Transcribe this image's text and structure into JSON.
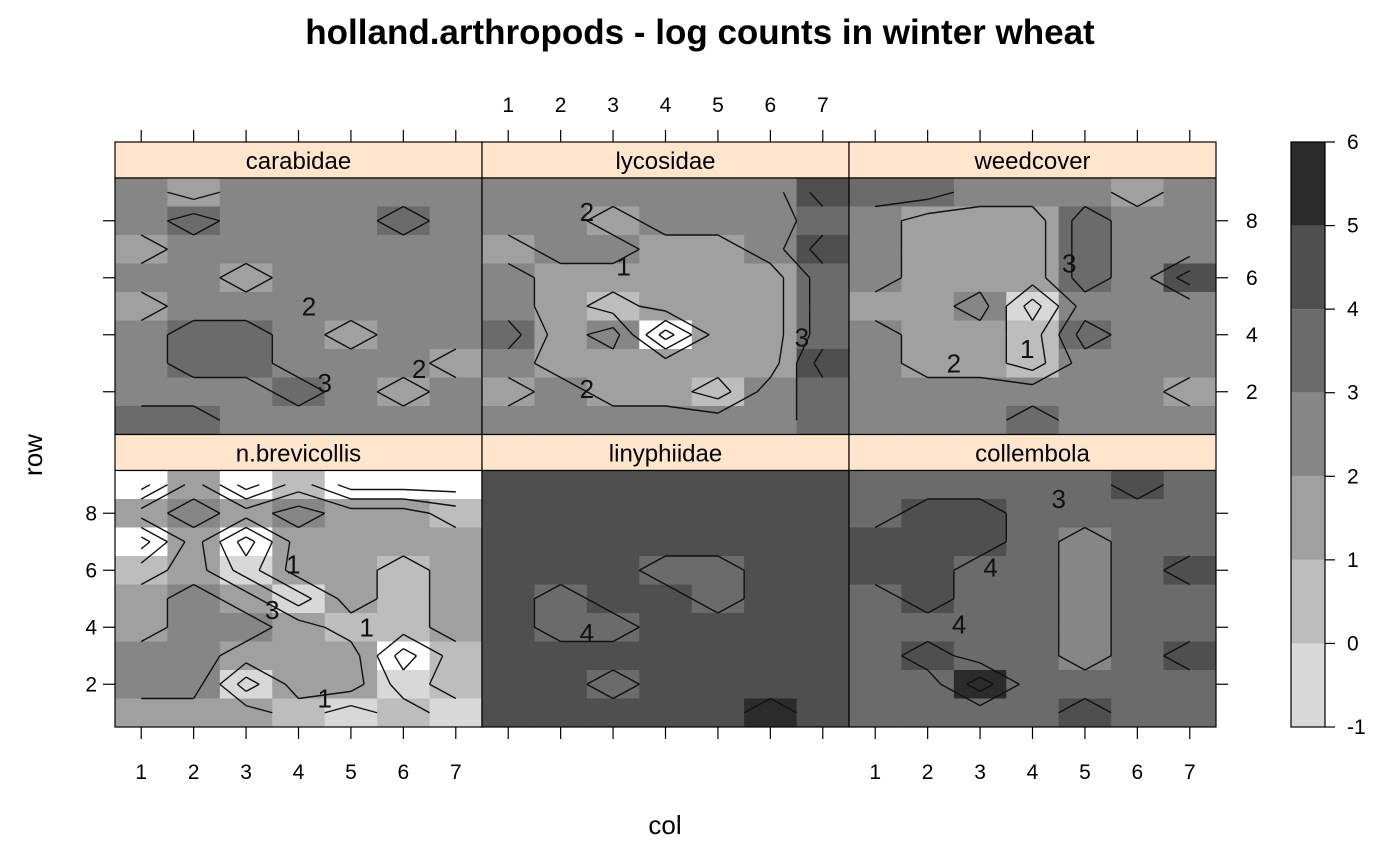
{
  "chart_data": {
    "type": "heatmap",
    "title": "holland.arthropods - log counts in winter wheat",
    "xlabel": "col",
    "ylabel": "row",
    "x_ticks": [
      "1",
      "2",
      "3",
      "4",
      "5",
      "6",
      "7"
    ],
    "y_ticks": [
      "2",
      "4",
      "6",
      "8"
    ],
    "xlim": [
      0.5,
      7.5
    ],
    "ylim": [
      0.5,
      9.5
    ],
    "colorbar": {
      "breaks": [
        -1,
        0,
        1,
        2,
        3,
        4,
        5,
        6
      ],
      "tick_labels": [
        "-1",
        "0",
        "1",
        "2",
        "3",
        "4",
        "5",
        "6"
      ],
      "colors": [
        "#d8d8d8",
        "#bdbdbd",
        "#a0a0a0",
        "#868686",
        "#6b6b6b",
        "#4f4f4f",
        "#2b2b2b"
      ]
    },
    "strip_color": "#ffe5cc",
    "panels": [
      {
        "name": "carabidae",
        "grid": [
          [
            2.5,
            1.5,
            2.5,
            2.5,
            2.5,
            2.5,
            2.5
          ],
          [
            2.5,
            3.5,
            2.5,
            2.5,
            2.5,
            3.5,
            2.5
          ],
          [
            1.5,
            2.5,
            2.5,
            2.5,
            2.5,
            2.5,
            2.5
          ],
          [
            2.5,
            2.5,
            1.5,
            2.5,
            2.5,
            2.5,
            2.5
          ],
          [
            1.5,
            2.5,
            2.5,
            2.5,
            2.5,
            2.5,
            2.5
          ],
          [
            2.5,
            3.5,
            3.5,
            2.5,
            1.5,
            2.5,
            2.5
          ],
          [
            2.5,
            3.5,
            3.5,
            2.5,
            2.5,
            2.5,
            1.5
          ],
          [
            2.5,
            2.5,
            2.5,
            3.5,
            2.5,
            1.5,
            2.5
          ],
          [
            3.5,
            3.5,
            2.5,
            2.5,
            2.5,
            2.5,
            2.5
          ]
        ],
        "contour_labels": [
          {
            "text": "2",
            "x": 4.2,
            "y": 5.0
          },
          {
            "text": "3",
            "x": 4.5,
            "y": 2.3
          },
          {
            "text": "2",
            "x": 6.3,
            "y": 2.8
          }
        ]
      },
      {
        "name": "lycosidae",
        "grid": [
          [
            2.5,
            2.5,
            2.5,
            2.5,
            2.5,
            2.5,
            4.5
          ],
          [
            2.5,
            2.5,
            1.5,
            2.5,
            2.5,
            2.5,
            3.5
          ],
          [
            1.5,
            2.5,
            2.5,
            1.5,
            1.5,
            2.5,
            4.5
          ],
          [
            2.5,
            1.5,
            1.5,
            1.5,
            1.5,
            1.5,
            3.5
          ],
          [
            2.5,
            1.5,
            0.5,
            1.5,
            1.5,
            1.5,
            3.5
          ],
          [
            3.5,
            1.5,
            2.5,
            -1.5,
            1.5,
            1.5,
            3.5
          ],
          [
            2.5,
            1.5,
            1.5,
            1.5,
            1.5,
            1.5,
            4.5
          ],
          [
            1.5,
            2.5,
            1.5,
            1.5,
            0.5,
            2.5,
            3.5
          ],
          [
            2.5,
            2.5,
            2.5,
            2.5,
            2.5,
            2.5,
            3.5
          ]
        ],
        "contour_labels": [
          {
            "text": "2",
            "x": 2.5,
            "y": 8.3
          },
          {
            "text": "1",
            "x": 3.2,
            "y": 6.4
          },
          {
            "text": "3",
            "x": 6.6,
            "y": 3.9
          },
          {
            "text": "2",
            "x": 2.5,
            "y": 2.1
          }
        ]
      },
      {
        "name": "weedcover",
        "grid": [
          [
            3.5,
            3.5,
            2.5,
            2.5,
            2.5,
            1.5,
            2.5
          ],
          [
            2.5,
            1.5,
            1.5,
            1.5,
            3.5,
            2.5,
            2.5
          ],
          [
            2.5,
            1.5,
            1.5,
            1.5,
            3.5,
            2.5,
            2.5
          ],
          [
            2.5,
            1.5,
            1.5,
            1.5,
            3.5,
            2.5,
            4.5
          ],
          [
            1.5,
            1.5,
            2.5,
            -0.5,
            2.5,
            2.5,
            2.5
          ],
          [
            2.5,
            1.5,
            1.5,
            0.5,
            3.5,
            2.5,
            2.5
          ],
          [
            2.5,
            1.5,
            1.5,
            0.5,
            2.5,
            2.5,
            2.5
          ],
          [
            2.5,
            2.5,
            2.5,
            2.5,
            2.5,
            2.5,
            1.5
          ],
          [
            2.5,
            2.5,
            2.5,
            3.5,
            2.5,
            2.5,
            2.5
          ]
        ],
        "contour_labels": [
          {
            "text": "3",
            "x": 4.7,
            "y": 6.5
          },
          {
            "text": "2",
            "x": 2.5,
            "y": 3.0
          },
          {
            "text": "1",
            "x": 3.9,
            "y": 3.5
          }
        ]
      },
      {
        "name": "n.brevicollis",
        "grid": [
          [
            -1.5,
            1.5,
            -1.5,
            0.5,
            -1.5,
            -1.5,
            -1.5
          ],
          [
            1.5,
            2.5,
            1.5,
            2.5,
            1.5,
            1.5,
            0.5
          ],
          [
            -1.5,
            1.5,
            -1.5,
            1.5,
            1.5,
            1.5,
            1.5
          ],
          [
            0.5,
            1.5,
            -0.5,
            1.5,
            1.5,
            0.5,
            1.5
          ],
          [
            1.5,
            2.5,
            1.5,
            -0.5,
            1.5,
            0.5,
            1.5
          ],
          [
            1.5,
            2.5,
            2.5,
            1.5,
            0.5,
            0.5,
            1.5
          ],
          [
            2.5,
            2.5,
            1.5,
            1.5,
            1.5,
            -1.5,
            0.5
          ],
          [
            2.5,
            2.5,
            -0.5,
            1.5,
            1.5,
            -0.5,
            0.5
          ],
          [
            1.5,
            1.5,
            1.5,
            0.5,
            -0.5,
            0.5,
            -0.5
          ]
        ],
        "contour_labels": [
          {
            "text": "1",
            "x": 3.9,
            "y": 6.2
          },
          {
            "text": "3",
            "x": 3.5,
            "y": 4.6
          },
          {
            "text": "1",
            "x": 5.3,
            "y": 4.0
          },
          {
            "text": "1",
            "x": 4.5,
            "y": 1.5
          }
        ]
      },
      {
        "name": "linyphiidae",
        "grid": [
          [
            4.5,
            4.5,
            4.5,
            4.5,
            4.5,
            4.5,
            4.5
          ],
          [
            4.5,
            4.5,
            4.5,
            4.5,
            4.5,
            4.5,
            4.5
          ],
          [
            4.5,
            4.5,
            4.5,
            4.5,
            4.5,
            4.5,
            4.5
          ],
          [
            4.5,
            4.5,
            4.5,
            3.5,
            3.5,
            4.5,
            4.5
          ],
          [
            4.5,
            3.5,
            4.5,
            4.5,
            3.5,
            4.5,
            4.5
          ],
          [
            4.5,
            3.5,
            3.5,
            4.5,
            4.5,
            4.5,
            4.5
          ],
          [
            4.5,
            4.5,
            4.5,
            4.5,
            4.5,
            4.5,
            4.5
          ],
          [
            4.5,
            4.5,
            3.5,
            4.5,
            4.5,
            4.5,
            4.5
          ],
          [
            4.5,
            4.5,
            4.5,
            4.5,
            4.5,
            5.5,
            4.5
          ]
        ],
        "contour_labels": [
          {
            "text": "4",
            "x": 2.5,
            "y": 3.8
          }
        ]
      },
      {
        "name": "collembola",
        "grid": [
          [
            3.5,
            3.5,
            3.5,
            3.5,
            3.5,
            4.5,
            3.5
          ],
          [
            3.5,
            4.5,
            4.5,
            3.5,
            3.5,
            3.5,
            3.5
          ],
          [
            4.5,
            4.5,
            4.5,
            3.5,
            2.5,
            3.5,
            3.5
          ],
          [
            4.5,
            4.5,
            3.5,
            3.5,
            2.5,
            3.5,
            4.5
          ],
          [
            3.5,
            4.5,
            3.5,
            3.5,
            2.5,
            3.5,
            3.5
          ],
          [
            3.5,
            3.5,
            3.5,
            3.5,
            2.5,
            3.5,
            3.5
          ],
          [
            3.5,
            4.5,
            3.5,
            3.5,
            2.5,
            3.5,
            4.5
          ],
          [
            3.5,
            3.5,
            5.5,
            3.5,
            3.5,
            3.5,
            3.5
          ],
          [
            3.5,
            3.5,
            3.5,
            3.5,
            4.5,
            3.5,
            3.5
          ]
        ],
        "contour_labels": [
          {
            "text": "3",
            "x": 4.5,
            "y": 8.5
          },
          {
            "text": "4",
            "x": 3.2,
            "y": 6.1
          },
          {
            "text": "4",
            "x": 2.6,
            "y": 4.1
          }
        ]
      }
    ]
  }
}
